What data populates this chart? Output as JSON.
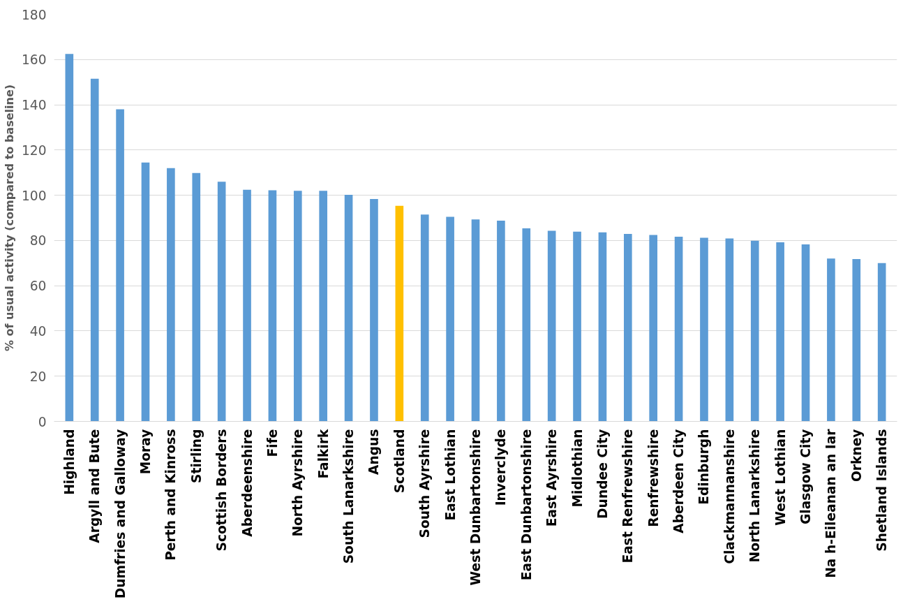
{
  "chart_data": {
    "type": "bar",
    "ylabel": "% of usual activity (compared to baseline)",
    "categories": [
      "Highland",
      "Argyll and Bute",
      "Dumfries and Galloway",
      "Moray",
      "Perth and Kinross",
      "Stirling",
      "Scottish Borders",
      "Aberdeenshire",
      "Fife",
      "North Ayrshire",
      "Falkirk",
      "South Lanarkshire",
      "Angus",
      "Scotland",
      "South Ayrshire",
      "East Lothian",
      "West Dunbartonshire",
      "Inverclyde",
      "East Dunbartonshire",
      "East Ayrshire",
      "Midlothian",
      "Dundee City",
      "East Renfrewshire",
      "Renfrewshire",
      "Aberdeen City",
      "Edinburgh",
      "Clackmannanshire",
      "North Lanarkshire",
      "West Lothian",
      "Glasgow City",
      "Na h-Eileanan an Iar",
      "Orkney",
      "Shetland Islands"
    ],
    "values": [
      162.5,
      151.5,
      138,
      114.5,
      112,
      109.8,
      106,
      102.4,
      102.2,
      102,
      102,
      100.2,
      98.3,
      95.3,
      91.5,
      90.5,
      89.3,
      88.8,
      85.4,
      84.3,
      83.9,
      83.6,
      82.9,
      82.4,
      81.7,
      81.2,
      80.9,
      79.9,
      79.2,
      78.3,
      72,
      71.8,
      70
    ],
    "colors": [
      "#5b9bd5",
      "#5b9bd5",
      "#5b9bd5",
      "#5b9bd5",
      "#5b9bd5",
      "#5b9bd5",
      "#5b9bd5",
      "#5b9bd5",
      "#5b9bd5",
      "#5b9bd5",
      "#5b9bd5",
      "#5b9bd5",
      "#5b9bd5",
      "#ffc000",
      "#5b9bd5",
      "#5b9bd5",
      "#5b9bd5",
      "#5b9bd5",
      "#5b9bd5",
      "#5b9bd5",
      "#5b9bd5",
      "#5b9bd5",
      "#5b9bd5",
      "#5b9bd5",
      "#5b9bd5",
      "#5b9bd5",
      "#5b9bd5",
      "#5b9bd5",
      "#5b9bd5",
      "#5b9bd5",
      "#5b9bd5",
      "#5b9bd5",
      "#5b9bd5"
    ],
    "ylim": [
      0,
      180
    ],
    "yticks": [
      0,
      20,
      40,
      60,
      80,
      100,
      120,
      140,
      160,
      180
    ],
    "grid": "y"
  }
}
